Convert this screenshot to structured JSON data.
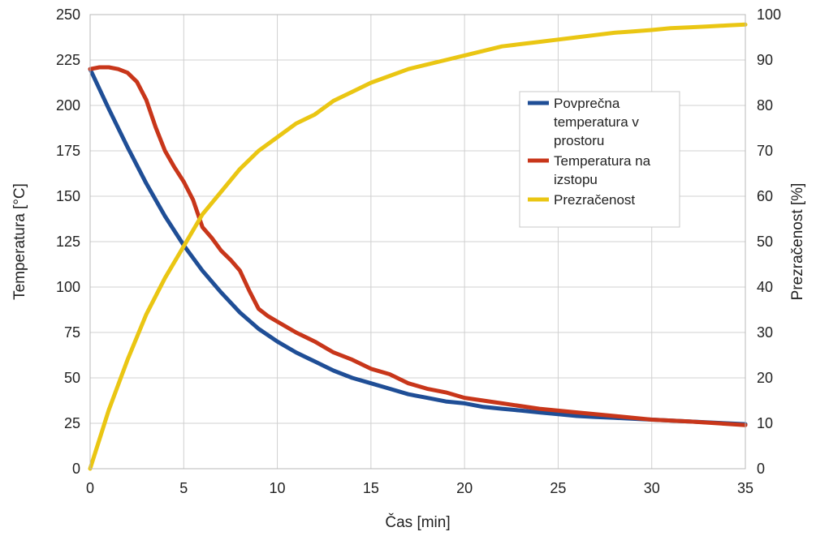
{
  "chart_data": {
    "type": "line",
    "xlabel": "Čas [min]",
    "ylabel_left": "Temperatura [°C]",
    "ylabel_right": "Prezračenost [%]",
    "x_ticks": [
      0,
      5,
      10,
      15,
      20,
      25,
      30,
      35
    ],
    "y_left_ticks": [
      0,
      25,
      50,
      75,
      100,
      125,
      150,
      175,
      200,
      225,
      250
    ],
    "y_right_ticks": [
      0,
      10,
      20,
      30,
      40,
      50,
      60,
      70,
      80,
      90,
      100
    ],
    "xlim": [
      0,
      35
    ],
    "ylim_left": [
      0,
      250
    ],
    "ylim_right": [
      0,
      100
    ],
    "grid": true,
    "legend_position": "right-middle",
    "series": [
      {
        "name": "Povprečna temperatura v prostoru",
        "axis": "left",
        "color": "#1f4e96",
        "x": [
          0,
          1,
          2,
          3,
          4,
          5,
          6,
          7,
          8,
          9,
          10,
          11,
          12,
          13,
          14,
          15,
          16,
          17,
          18,
          19,
          20,
          21,
          22,
          23,
          24,
          25,
          26,
          27,
          28,
          29,
          30,
          31,
          32,
          33,
          34,
          35
        ],
        "y": [
          220,
          198,
          177,
          157,
          139,
          123,
          109,
          97,
          86,
          77,
          70,
          64,
          59,
          54,
          50,
          47,
          44,
          41,
          39,
          37,
          36,
          34,
          33,
          32,
          31,
          30,
          29,
          28.5,
          28,
          27.5,
          27,
          26.5,
          26,
          25.5,
          25,
          24.5
        ]
      },
      {
        "name": "Temperatura na izstopu",
        "axis": "left",
        "color": "#c8361a",
        "x": [
          0,
          0.5,
          1,
          1.5,
          2,
          2.5,
          3,
          3.5,
          4,
          4.5,
          5,
          5.5,
          6,
          6.5,
          7,
          7.5,
          8,
          8.5,
          9,
          9.5,
          10,
          11,
          12,
          13,
          14,
          15,
          16,
          17,
          18,
          19,
          20,
          22,
          24,
          26,
          28,
          30,
          32,
          35
        ],
        "y": [
          220,
          221,
          221,
          220,
          218,
          213,
          203,
          188,
          175,
          166,
          158,
          148,
          133,
          127,
          120,
          115,
          109,
          98,
          88,
          84,
          81,
          75,
          70,
          64,
          60,
          55,
          52,
          47,
          44,
          42,
          39,
          36,
          33,
          31,
          29,
          27,
          26,
          24
        ]
      },
      {
        "name": "Prezračenost",
        "axis": "right",
        "color": "#eac613",
        "x": [
          0,
          1,
          2,
          3,
          4,
          5,
          6,
          7,
          8,
          9,
          10,
          11,
          12,
          13,
          14,
          15,
          16,
          17,
          18,
          19,
          20,
          21,
          22,
          23,
          24,
          25,
          26,
          27,
          28,
          29,
          30,
          31,
          32,
          33,
          34,
          35
        ],
        "y": [
          0,
          13,
          24,
          34,
          42,
          49,
          56,
          61,
          66,
          70,
          73,
          76,
          78,
          81,
          83,
          85,
          86.5,
          88,
          89,
          90,
          91,
          92,
          93,
          93.5,
          94,
          94.5,
          95,
          95.5,
          96,
          96.3,
          96.6,
          97,
          97.2,
          97.4,
          97.6,
          97.8
        ]
      }
    ]
  }
}
